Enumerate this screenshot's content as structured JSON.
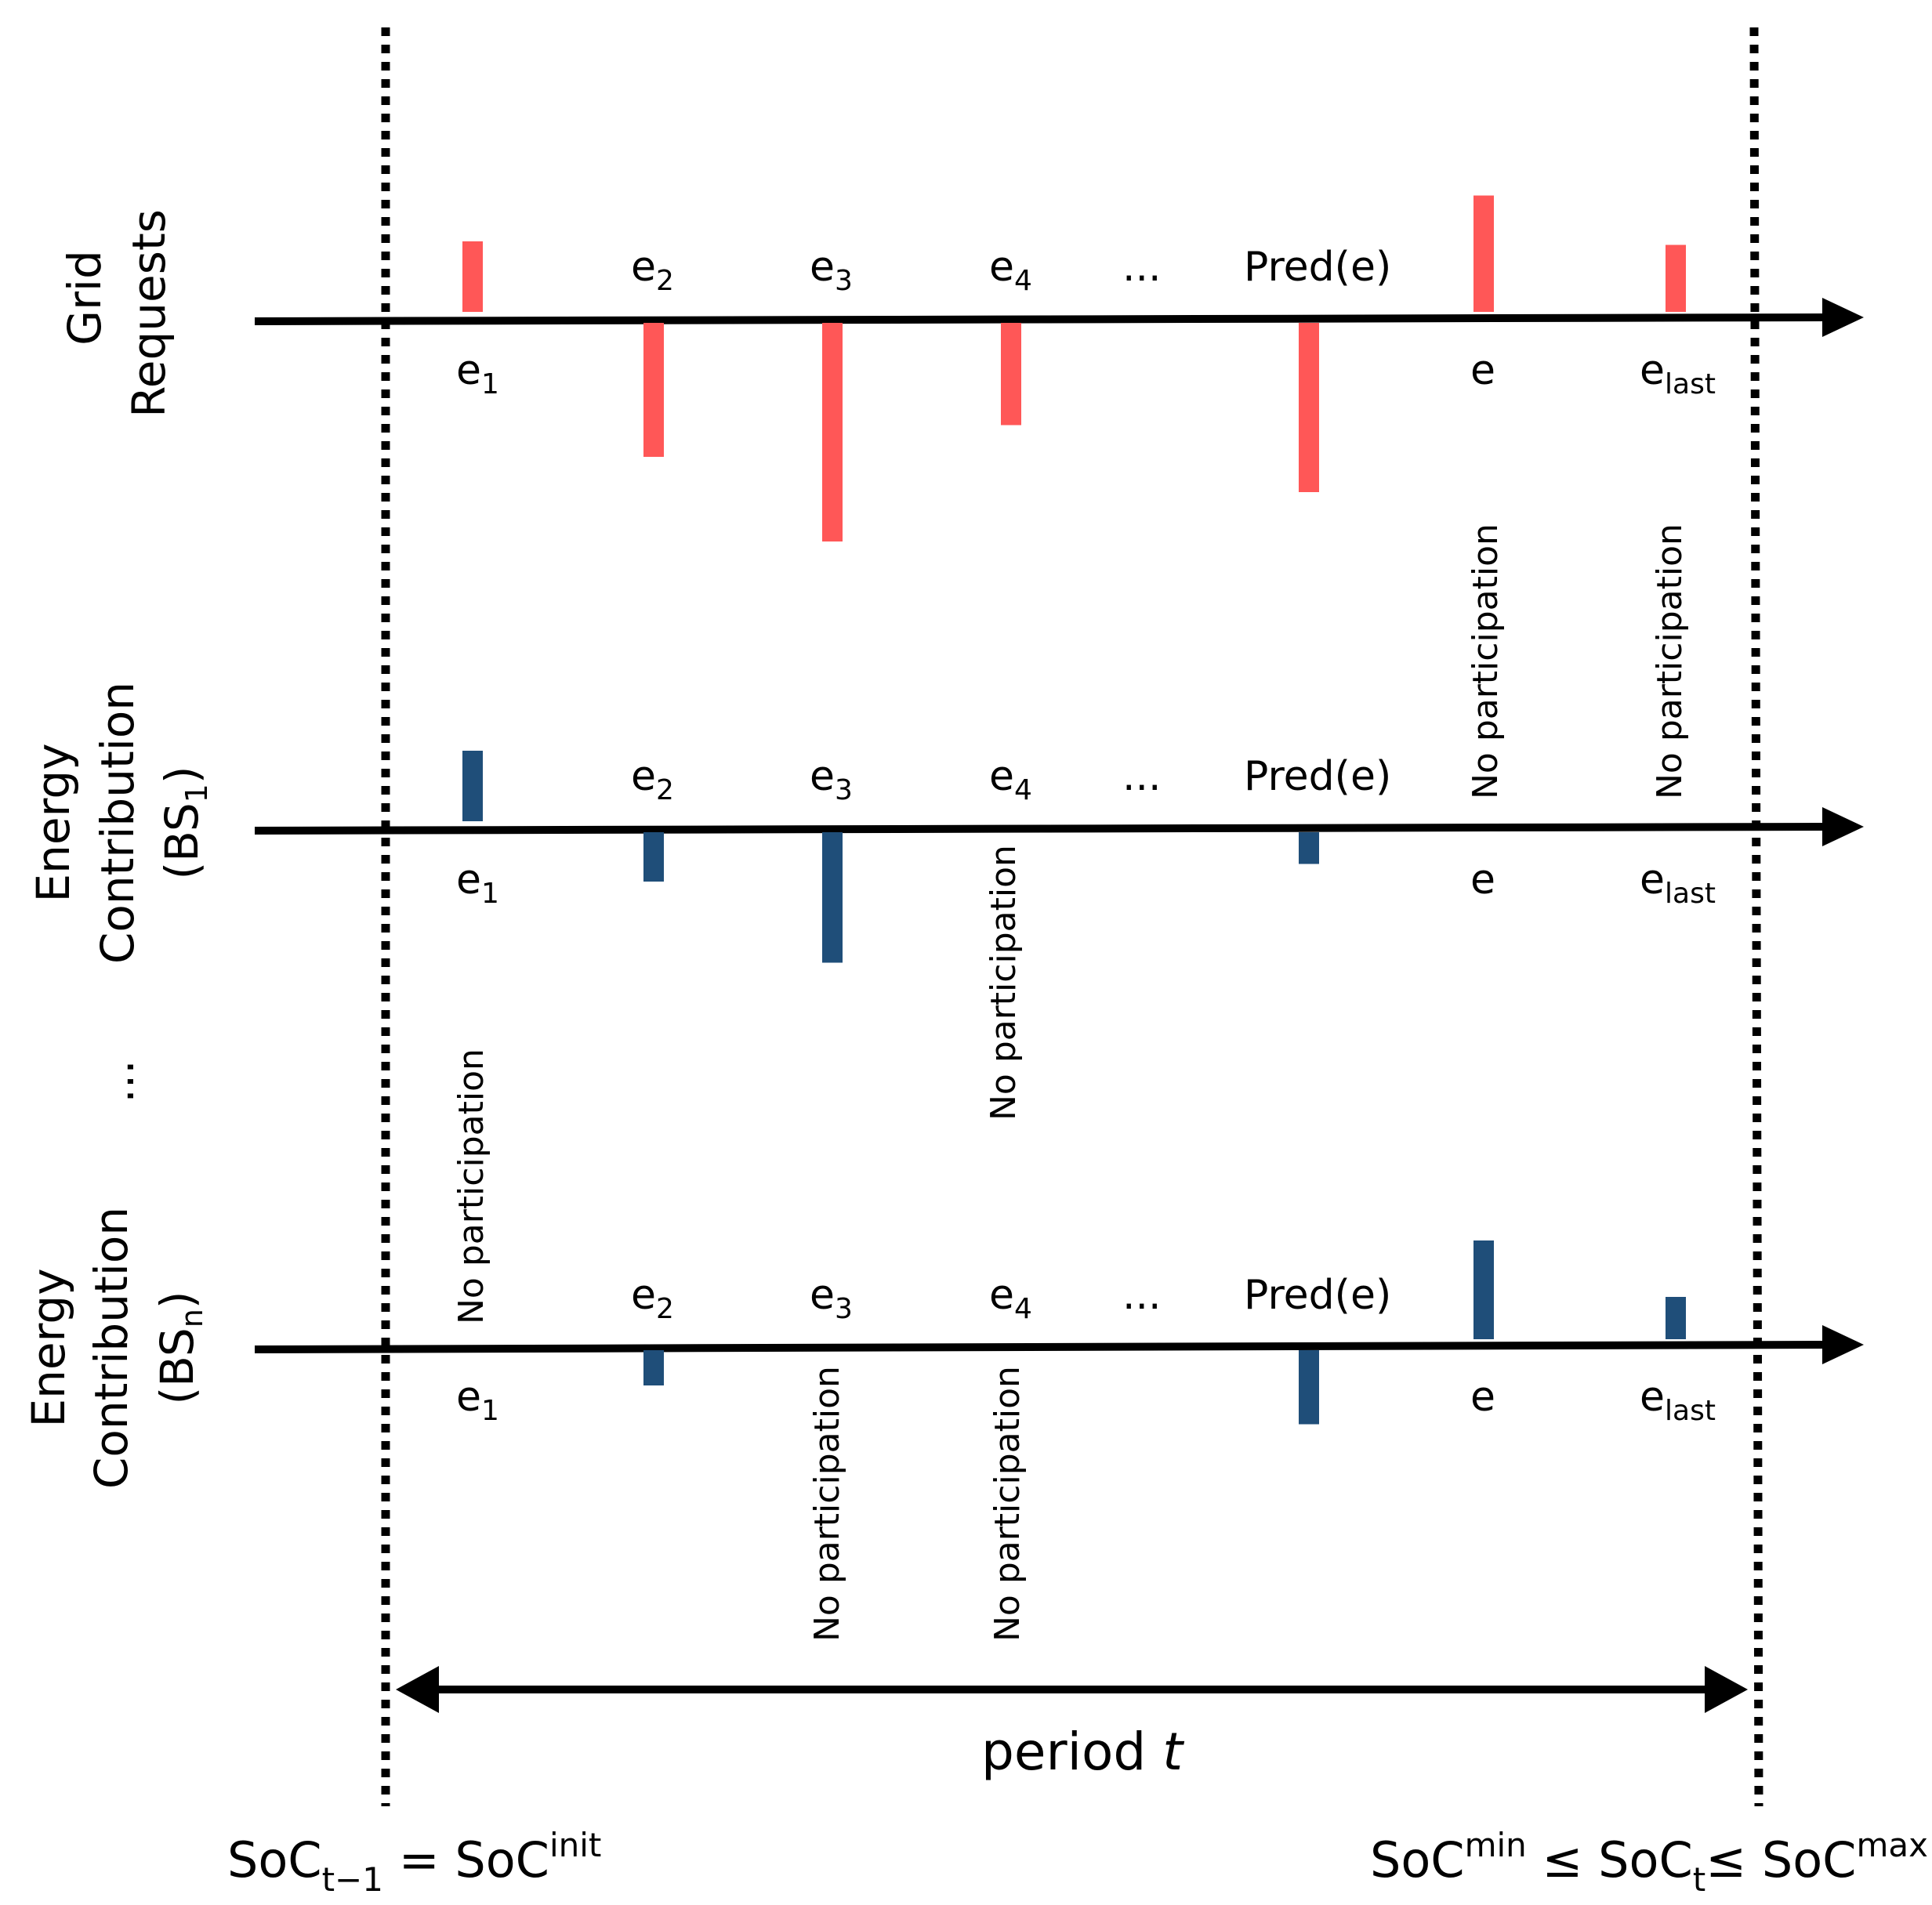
{
  "colors": {
    "grid_bar": "#FF5757",
    "bs_bar": "#1F4E79",
    "ink": "#000000"
  },
  "row_labels": {
    "grid": [
      "Grid",
      "Requests"
    ],
    "bs1": [
      "Energy",
      "Contribution",
      "(BS",
      "1",
      ")"
    ],
    "ellipsis": "...",
    "bsn": [
      "Energy",
      "Contribution",
      "(BS",
      "n",
      ")"
    ]
  },
  "events": {
    "e": "e",
    "sub2": "2",
    "sub3": "3",
    "sub4": "4",
    "sub1": "1",
    "sublast": "last",
    "dots": "...",
    "pred": "Pred(e)",
    "e_plain": "e"
  },
  "no_participation": "No participation",
  "bars": {
    "grid": {
      "e1": 1.0,
      "e2": -1.9,
      "e3": -3.1,
      "e4": -1.45,
      "pred": -2.4,
      "e": 1.65,
      "elast": 0.95
    },
    "bs1": {
      "e1": 1.0,
      "e2": -0.7,
      "e3": -1.85,
      "pred": -0.45
    },
    "bsn": {
      "e2": -0.5,
      "pred": -1.05,
      "e": 1.4,
      "elast": 0.6
    }
  },
  "period": {
    "text": "period ",
    "var": "t"
  },
  "soc_left": {
    "a": "SoC",
    "a_sub": "t−1",
    "eq": " = SoC",
    "b_sup": "init"
  },
  "soc_right": {
    "a": "SoC",
    "a_sup": "min",
    "le1": " ≤ SoC",
    "b_sub": "t",
    "le2": "≤ SoC",
    "c_sup": "max"
  }
}
